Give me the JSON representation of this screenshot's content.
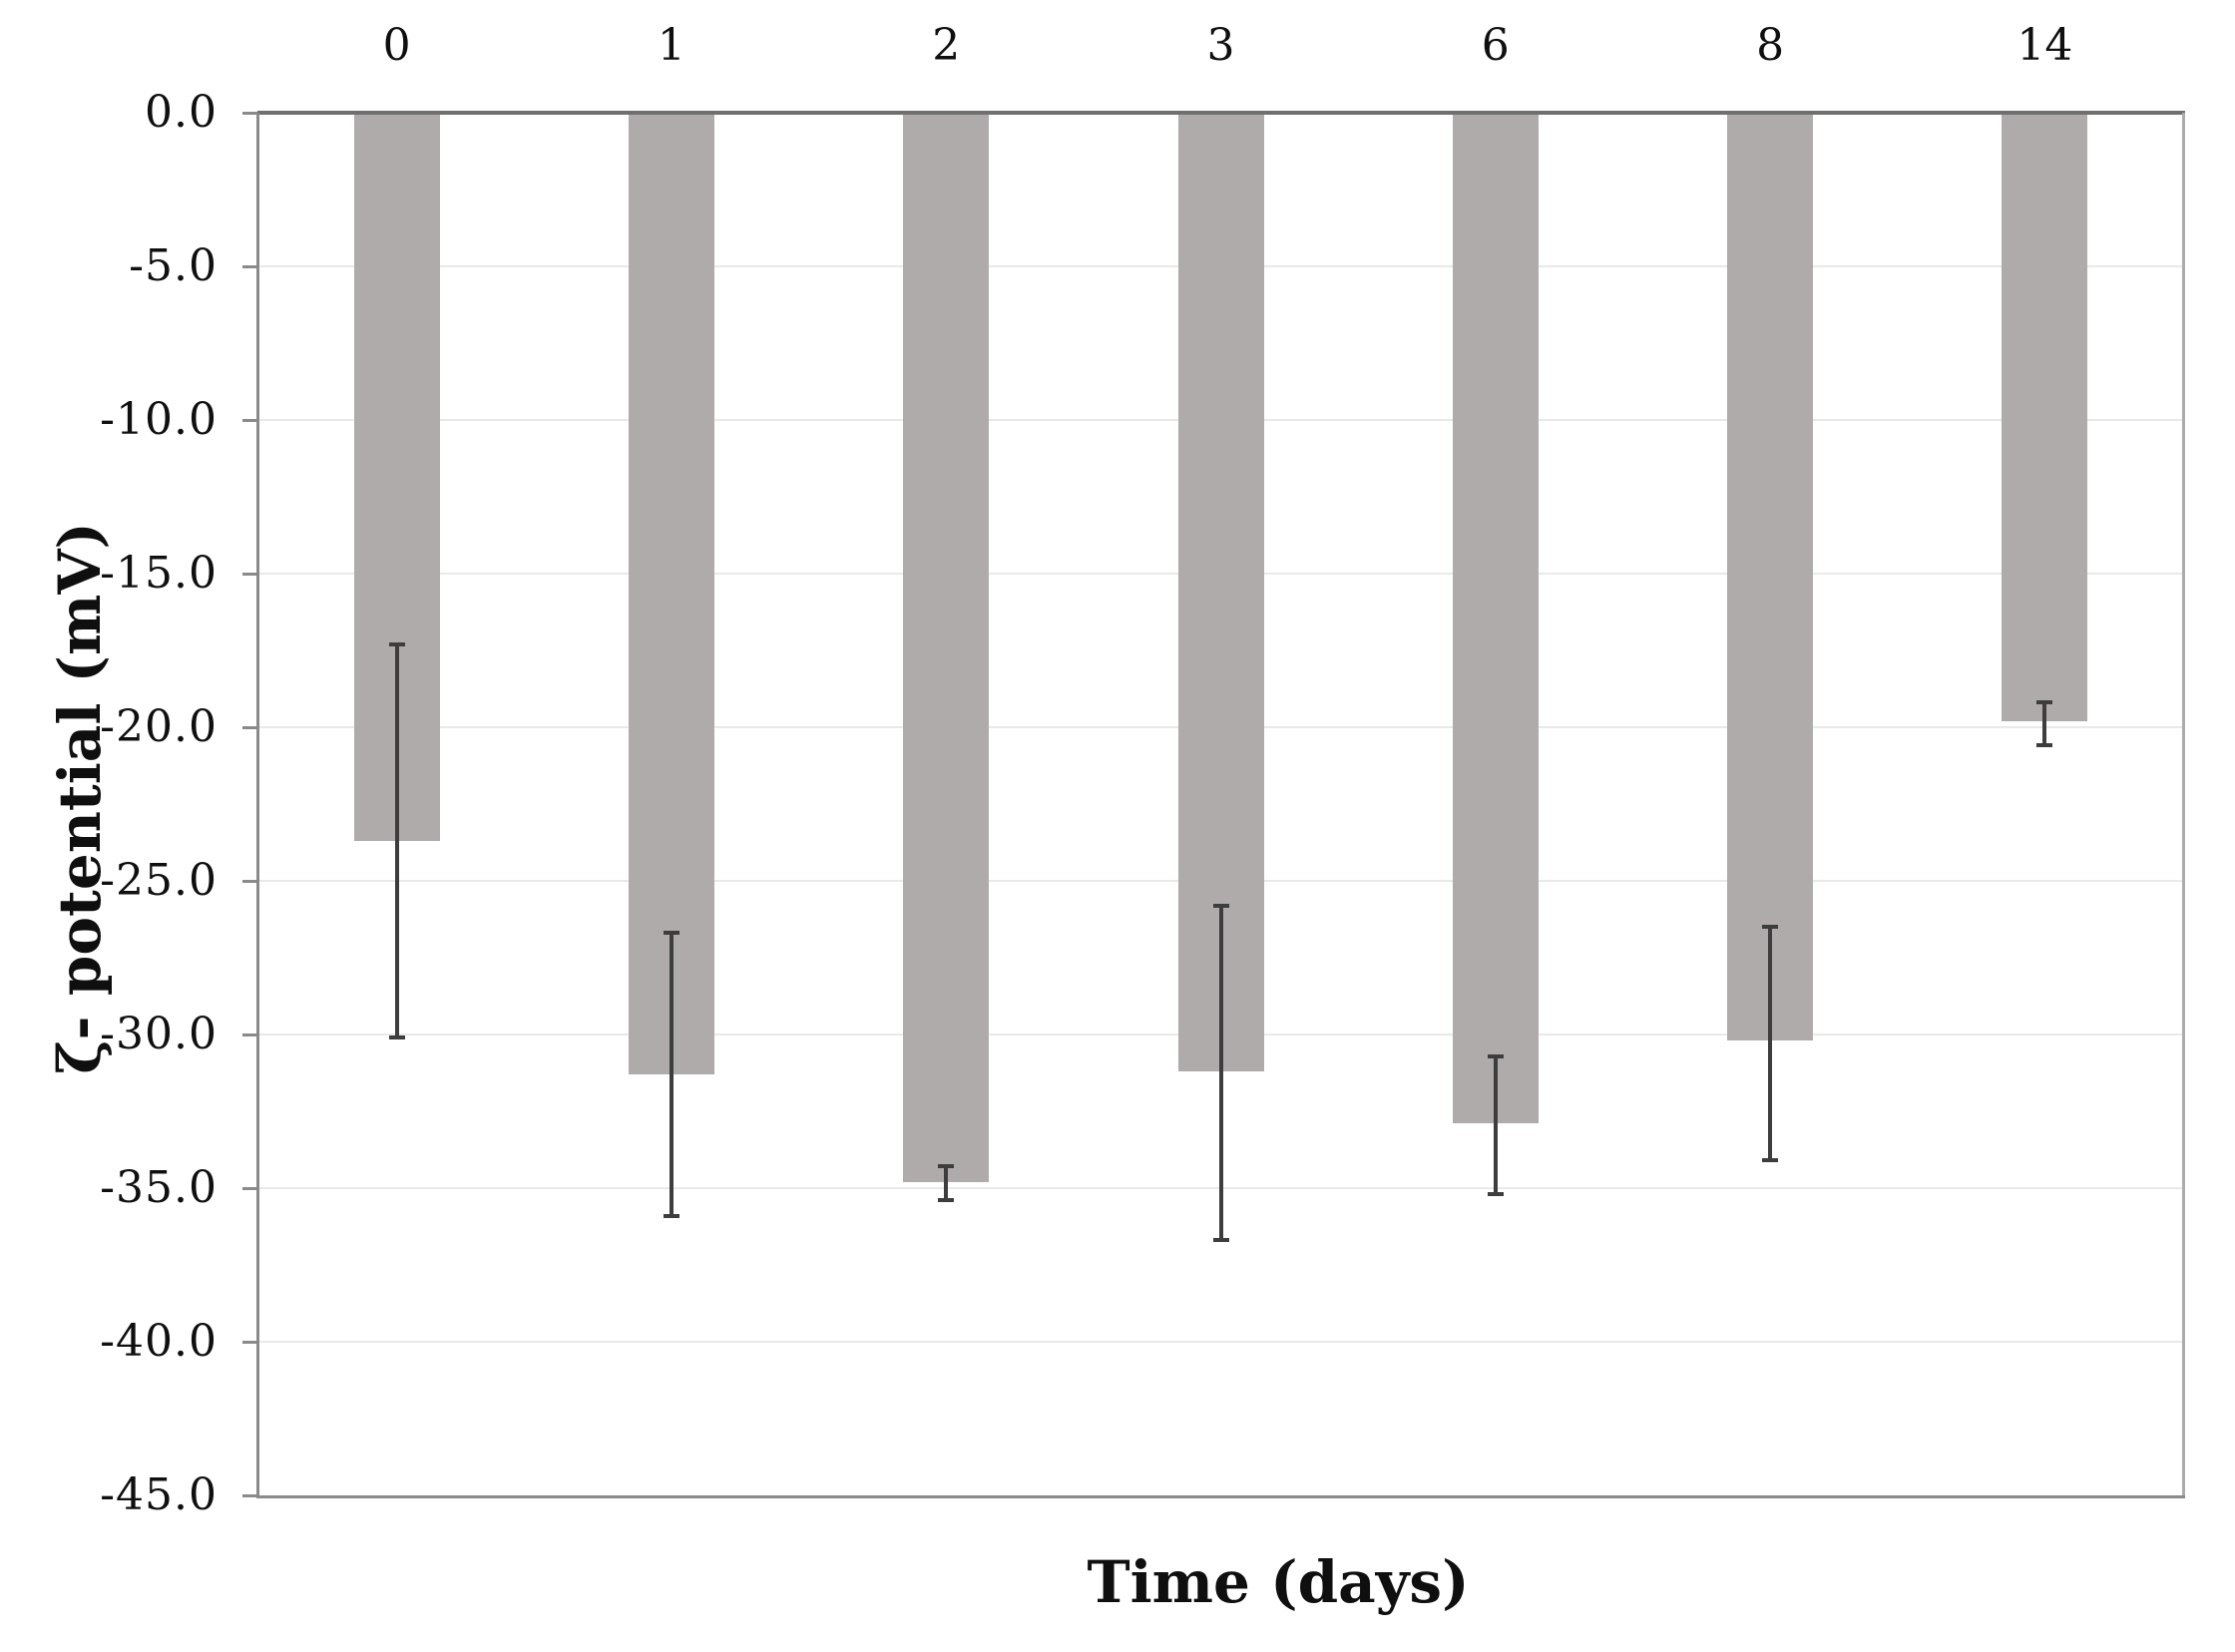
{
  "chart_data": {
    "type": "bar",
    "title": "",
    "xlabel": "Time (days)",
    "ylabel": "ζ- potential (mV)",
    "categories": [
      "0",
      "1",
      "2",
      "3",
      "6",
      "8",
      "14"
    ],
    "values": [
      -23.7,
      -31.3,
      -34.8,
      -31.2,
      -32.9,
      -30.2,
      -19.8
    ],
    "error_upper": [
      -17.3,
      -26.7,
      -34.3,
      -25.8,
      -30.7,
      -26.5,
      -19.2
    ],
    "error_lower": [
      -30.1,
      -35.9,
      -35.4,
      -36.7,
      -35.2,
      -34.1,
      -20.6
    ],
    "ylim": [
      0,
      -45
    ],
    "ytick_step": 5,
    "ytick_labels": [
      "0.0",
      "-5.0",
      "-10.0",
      "-15.0",
      "-20.0",
      "-25.0",
      "-30.0",
      "-35.0",
      "-40.0",
      "-45.0"
    ],
    "grid": true,
    "legend_position": "none",
    "category_axis_position": "top",
    "bars_direction": "down",
    "colors": {
      "bar_fill": "#afabab",
      "error_bar": "#3d3d3d",
      "grid_line": "#e9e9e9",
      "zero_line": "#6f6f6f",
      "axis_line": "#8a8a8a",
      "right_border": "#ababab",
      "text": "#0f0f0f"
    }
  }
}
